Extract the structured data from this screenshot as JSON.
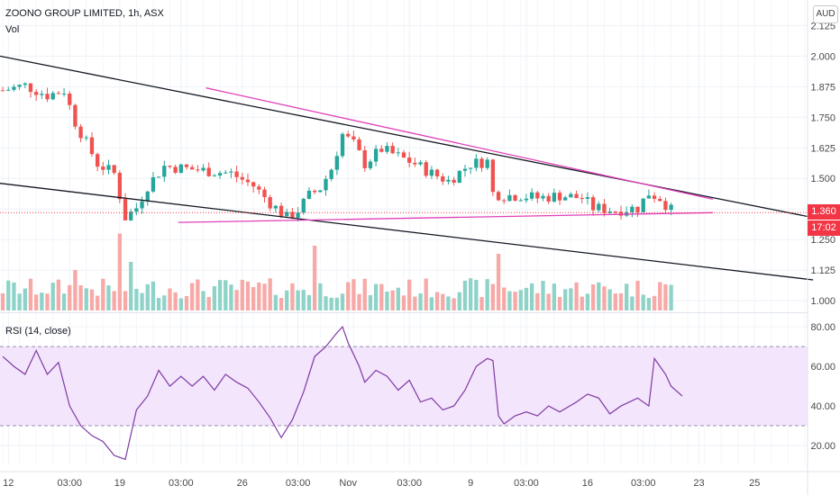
{
  "header": {
    "title": "ZOONO GROUP LIMITED, 1h, ASX",
    "volume_label": "Vol",
    "rsi_label": "RSI (14, close)",
    "currency": "AUD",
    "last_price": "1.360",
    "countdown": "17:02"
  },
  "colors": {
    "up": "#26a69a",
    "down": "#ef5350",
    "vol_up": "#8fd3c8",
    "vol_down": "#f7a9a7",
    "trend_black": "#131722",
    "trend_magenta": "#e040b8",
    "rsi_line": "#7e3aa3",
    "rsi_band": "#f3e5fc",
    "price_tag": "#f23645"
  },
  "chart_data": [
    {
      "type": "candlestick",
      "name": "price",
      "y_ticks": [
        1.0,
        1.125,
        1.25,
        1.375,
        1.5,
        1.625,
        1.75,
        1.875,
        2.0,
        2.125
      ],
      "y_tick_labels": [
        "1.000",
        "1.125",
        "1.250",
        "1.375",
        "1.500",
        "1.625",
        "1.750",
        "1.875",
        "2.000",
        "2.125"
      ],
      "ylim": [
        0.96,
        2.2
      ],
      "x_labels": [
        "12",
        "03:00",
        "19",
        "03:00",
        "26",
        "03:00",
        "Nov",
        "03:00",
        "9",
        "03:00",
        "16",
        "03:00",
        "23",
        "25"
      ],
      "x_label_index": [
        1,
        12,
        21,
        32,
        43,
        53,
        62,
        73,
        84,
        94,
        105,
        115,
        125,
        135
      ],
      "bar_count": 145,
      "close_path": [
        [
          0,
          1.86
        ],
        [
          4,
          1.88
        ],
        [
          8,
          1.84
        ],
        [
          11,
          1.86
        ],
        [
          13,
          1.73
        ],
        [
          17,
          1.56
        ],
        [
          20,
          1.52
        ],
        [
          22,
          1.34
        ],
        [
          24,
          1.38
        ],
        [
          26,
          1.47
        ],
        [
          29,
          1.55
        ],
        [
          33,
          1.54
        ],
        [
          37,
          1.53
        ],
        [
          41,
          1.52
        ],
        [
          45,
          1.47
        ],
        [
          48,
          1.4
        ],
        [
          51,
          1.34
        ],
        [
          53,
          1.37
        ],
        [
          55,
          1.43
        ],
        [
          57,
          1.46
        ],
        [
          59,
          1.54
        ],
        [
          61,
          1.68
        ],
        [
          63,
          1.64
        ],
        [
          65,
          1.56
        ],
        [
          68,
          1.62
        ],
        [
          71,
          1.59
        ],
        [
          74,
          1.56
        ],
        [
          77,
          1.52
        ],
        [
          80,
          1.49
        ],
        [
          84,
          1.56
        ],
        [
          87,
          1.57
        ],
        [
          88,
          1.44
        ],
        [
          90,
          1.43
        ],
        [
          93,
          1.43
        ],
        [
          96,
          1.42
        ],
        [
          100,
          1.43
        ],
        [
          104,
          1.42
        ],
        [
          106,
          1.38
        ],
        [
          110,
          1.37
        ],
        [
          114,
          1.38
        ],
        [
          116,
          1.44
        ],
        [
          118,
          1.42
        ],
        [
          120,
          1.37
        ]
      ],
      "last_price": 1.36,
      "trendlines": [
        {
          "color": "black",
          "from": [
            0,
            2.0
          ],
          "to": [
            146,
            1.34
          ]
        },
        {
          "color": "black",
          "from": [
            0,
            1.48
          ],
          "to": [
            146,
            1.085
          ]
        },
        {
          "color": "magenta",
          "from": [
            37,
            1.87
          ],
          "to": [
            128,
            1.415
          ]
        },
        {
          "color": "magenta",
          "from": [
            32,
            1.32
          ],
          "to": [
            128,
            1.36
          ]
        }
      ]
    },
    {
      "type": "bar",
      "name": "volume",
      "peaks": [
        [
          21,
          0.95
        ],
        [
          23,
          0.6
        ],
        [
          13,
          0.5
        ],
        [
          56,
          0.8
        ],
        [
          89,
          0.7
        ],
        [
          118,
          0.35
        ],
        [
          62,
          0.35
        ]
      ],
      "base": 0.15
    },
    {
      "type": "line",
      "name": "rsi",
      "y_ticks": [
        20,
        40,
        60,
        80
      ],
      "y_tick_labels": [
        "20.00",
        "40.00",
        "60.00",
        "80.00"
      ],
      "ylim": [
        10,
        86
      ],
      "band": [
        30,
        70
      ],
      "path": [
        [
          0,
          65
        ],
        [
          2,
          60
        ],
        [
          4,
          56
        ],
        [
          6,
          68
        ],
        [
          8,
          56
        ],
        [
          10,
          62
        ],
        [
          12,
          40
        ],
        [
          14,
          30
        ],
        [
          16,
          25
        ],
        [
          18,
          22
        ],
        [
          20,
          15
        ],
        [
          22,
          13
        ],
        [
          24,
          38
        ],
        [
          26,
          45
        ],
        [
          28,
          58
        ],
        [
          30,
          50
        ],
        [
          32,
          55
        ],
        [
          34,
          50
        ],
        [
          36,
          55
        ],
        [
          38,
          48
        ],
        [
          40,
          56
        ],
        [
          42,
          52
        ],
        [
          44,
          49
        ],
        [
          46,
          42
        ],
        [
          48,
          34
        ],
        [
          50,
          24
        ],
        [
          52,
          33
        ],
        [
          54,
          47
        ],
        [
          56,
          65
        ],
        [
          58,
          70
        ],
        [
          60,
          77
        ],
        [
          61,
          80
        ],
        [
          62,
          72
        ],
        [
          64,
          60
        ],
        [
          65,
          52
        ],
        [
          67,
          58
        ],
        [
          69,
          55
        ],
        [
          71,
          48
        ],
        [
          73,
          53
        ],
        [
          75,
          42
        ],
        [
          77,
          44
        ],
        [
          79,
          38
        ],
        [
          81,
          40
        ],
        [
          83,
          48
        ],
        [
          85,
          60
        ],
        [
          87,
          64
        ],
        [
          88,
          63
        ],
        [
          89,
          35
        ],
        [
          90,
          31
        ],
        [
          92,
          35
        ],
        [
          94,
          37
        ],
        [
          96,
          35
        ],
        [
          98,
          40
        ],
        [
          100,
          37
        ],
        [
          103,
          42
        ],
        [
          105,
          46
        ],
        [
          107,
          44
        ],
        [
          109,
          36
        ],
        [
          111,
          40
        ],
        [
          114,
          44
        ],
        [
          116,
          40
        ],
        [
          117,
          64
        ],
        [
          118,
          60
        ],
        [
          119,
          56
        ],
        [
          120,
          50
        ],
        [
          122,
          45
        ]
      ]
    }
  ]
}
